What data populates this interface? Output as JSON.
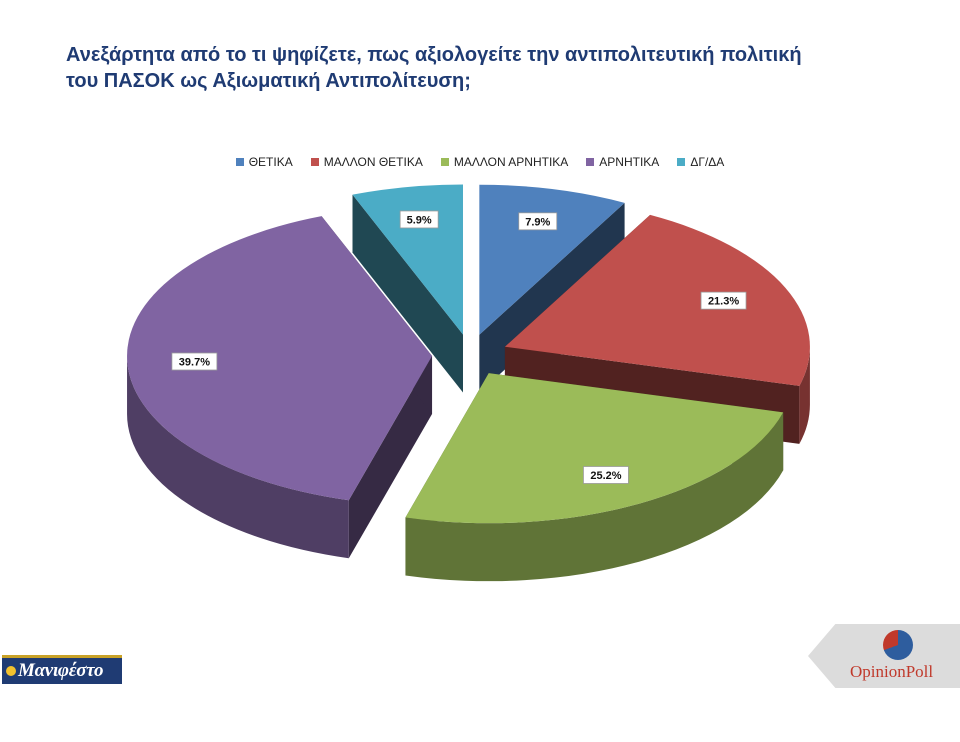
{
  "title_line1": "Ανεξάρτητα από το τι ψηφίζετε, πως αξιολογείτε την αντιπολιτευτική πολιτική",
  "title_line2": "του ΠΑΣΟΚ ως Αξιωματική Αντιπολίτευση;",
  "colors": {
    "title": "#1f3b73",
    "positive": "#4f81bd",
    "rather_positive": "#c0504d",
    "rather_negative": "#9bbb59",
    "negative": "#8064a2",
    "dk_na": "#4bacc6"
  },
  "chart_data": {
    "type": "pie",
    "style": "3d-exploded",
    "title": "Ανεξάρτητα από το τι ψηφίζετε, πως αξιολογείτε την αντιπολιτευτική πολιτική του ΠΑΣΟΚ ως Αξιωματική Αντιπολίτευση;",
    "legend_position": "top",
    "slices": [
      {
        "label": "ΘΕΤΙΚΑ",
        "value": 7.9,
        "value_label": "7.9%",
        "color": "#4f81bd"
      },
      {
        "label": "ΜΑΛΛΟΝ ΘΕΤΙΚΑ",
        "value": 21.3,
        "value_label": "21.3%",
        "color": "#c0504d"
      },
      {
        "label": "ΜΑΛΛΟΝ ΑΡΝΗΤΙΚΑ",
        "value": 25.2,
        "value_label": "25.2%",
        "color": "#9bbb59"
      },
      {
        "label": "ΑΡΝΗΤΙΚΑ",
        "value": 39.7,
        "value_label": "39.7%",
        "color": "#8064a2"
      },
      {
        "label": "ΔΓ/ΔΑ",
        "value": 5.9,
        "value_label": "5.9%",
        "color": "#4bacc6"
      }
    ]
  },
  "logos": {
    "left_text": "Μανιφέστο",
    "right_text": "OpinionPoll"
  }
}
